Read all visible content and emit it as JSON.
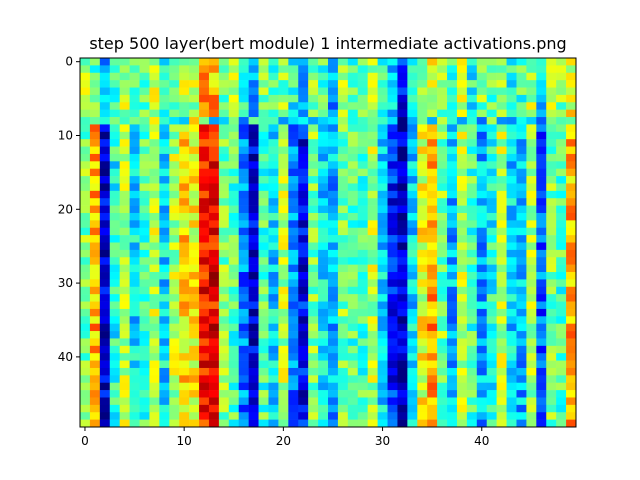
{
  "chart_data": {
    "type": "heatmap",
    "title": "step 500 layer(bert module) 1 intermediate activations.png",
    "xlabel": "",
    "ylabel": "",
    "colormap": "jet",
    "value_range": [
      0,
      1
    ],
    "rows": 50,
    "cols": 50,
    "xlim": [
      -0.5,
      49.5
    ],
    "ylim": [
      49.5,
      -0.5
    ],
    "x_ticks": [
      0,
      10,
      20,
      30,
      40
    ],
    "y_ticks": [
      0,
      10,
      20,
      30,
      40
    ],
    "grid": false,
    "column_profile_upper": [
      0.55,
      0.45,
      0.3,
      0.45,
      0.55,
      0.5,
      0.45,
      0.55,
      0.4,
      0.5,
      0.55,
      0.55,
      0.75,
      0.7,
      0.45,
      0.55,
      0.4,
      0.3,
      0.5,
      0.45,
      0.5,
      0.4,
      0.3,
      0.5,
      0.45,
      0.3,
      0.55,
      0.45,
      0.5,
      0.55,
      0.45,
      0.35,
      0.15,
      0.45,
      0.55,
      0.6,
      0.5,
      0.45,
      0.55,
      0.4,
      0.5,
      0.45,
      0.55,
      0.4,
      0.45,
      0.55,
      0.35,
      0.55,
      0.5,
      0.6
    ],
    "column_profile_lower": [
      0.5,
      0.7,
      0.08,
      0.4,
      0.55,
      0.35,
      0.45,
      0.55,
      0.35,
      0.55,
      0.65,
      0.62,
      0.85,
      0.88,
      0.5,
      0.45,
      0.25,
      0.08,
      0.45,
      0.35,
      0.55,
      0.25,
      0.12,
      0.5,
      0.35,
      0.3,
      0.5,
      0.45,
      0.45,
      0.55,
      0.35,
      0.15,
      0.05,
      0.35,
      0.6,
      0.72,
      0.5,
      0.3,
      0.55,
      0.45,
      0.3,
      0.4,
      0.55,
      0.35,
      0.3,
      0.55,
      0.22,
      0.5,
      0.45,
      0.7
    ],
    "row_band_override": {
      "row": 8,
      "value": 0.4
    }
  }
}
